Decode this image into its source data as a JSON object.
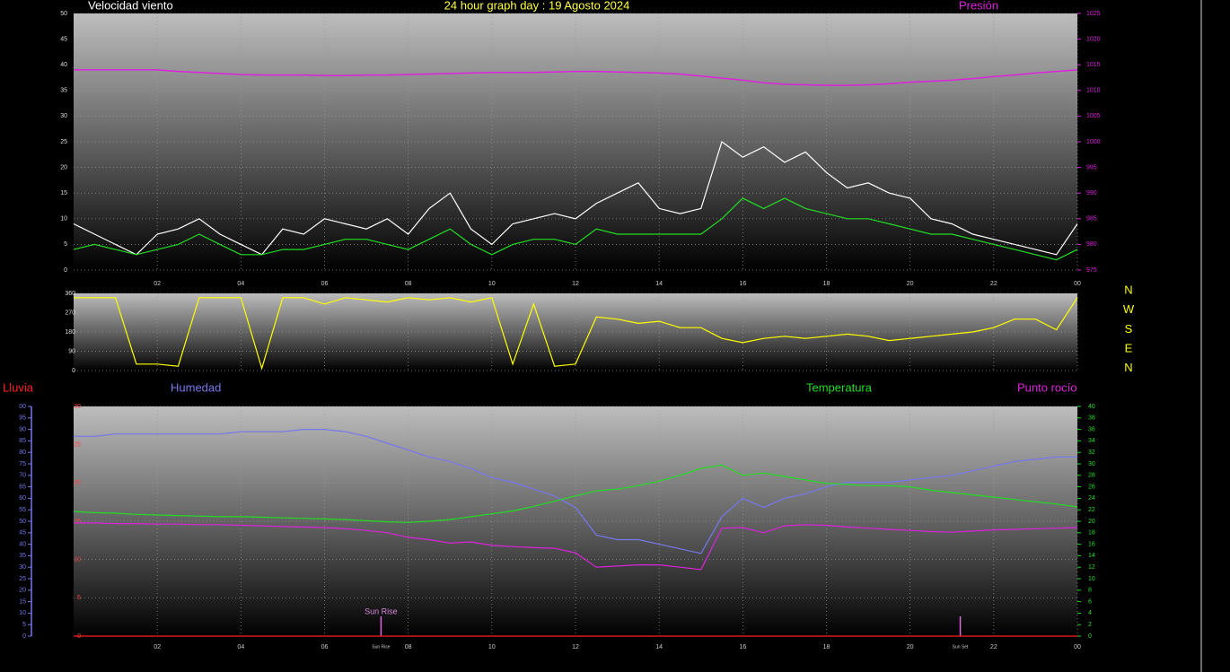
{
  "chart_data": [
    {
      "type": "line",
      "title": "24 hour graph day : 19 Agosto 2024",
      "ylabel": "Velocidad viento",
      "y2label": "Presión",
      "x": [
        0,
        0.5,
        1,
        1.5,
        2,
        2.5,
        3,
        3.5,
        4,
        4.5,
        5,
        5.5,
        6,
        6.5,
        7,
        7.5,
        8,
        8.5,
        9,
        9.5,
        10,
        10.5,
        11,
        11.5,
        12,
        12.5,
        13,
        13.5,
        14,
        14.5,
        15,
        15.5,
        16,
        16.5,
        17,
        17.5,
        18,
        18.5,
        19,
        19.5,
        20,
        20.5,
        21,
        21.5,
        22,
        22.5,
        23,
        23.5,
        24
      ],
      "xlim": [
        0,
        24
      ],
      "xticks": [
        {
          "value": 2,
          "label": "02"
        },
        {
          "value": 4,
          "label": "04"
        },
        {
          "value": 6,
          "label": "06"
        },
        {
          "value": 8,
          "label": "08"
        },
        10,
        12,
        14,
        16,
        18,
        20,
        22,
        {
          "value": 24,
          "label": "00"
        }
      ],
      "ylim": [
        0,
        50
      ],
      "yticks": [
        0,
        5,
        10,
        15,
        20,
        25,
        30,
        35,
        40,
        45,
        50
      ],
      "y2lim": [
        975,
        1025
      ],
      "y2ticks": [
        975,
        980,
        985,
        990,
        995,
        1000,
        1005,
        1010,
        1015,
        1020,
        1025
      ],
      "grid": true,
      "xtick_labels": true,
      "series": [
        {
          "color": "#ffffff",
          "values": [
            9,
            7,
            5,
            3,
            7,
            8,
            10,
            7,
            5,
            3,
            8,
            7,
            10,
            9,
            8,
            10,
            7,
            12,
            15,
            8,
            5,
            9,
            10,
            11,
            10,
            13,
            15,
            17,
            12,
            11,
            12,
            25,
            22,
            24,
            21,
            23,
            19,
            16,
            17,
            15,
            14,
            10,
            9,
            7,
            6,
            5,
            4,
            3,
            9
          ]
        },
        {
          "color": "#22dd22",
          "values": [
            4,
            5,
            4,
            3,
            4,
            5,
            7,
            5,
            3,
            3,
            4,
            4,
            5,
            6,
            6,
            5,
            4,
            6,
            8,
            5,
            3,
            5,
            6,
            6,
            5,
            8,
            7,
            7,
            7,
            7,
            7,
            10,
            14,
            12,
            14,
            12,
            11,
            10,
            10,
            9,
            8,
            7,
            7,
            6,
            5,
            4,
            3,
            2,
            4
          ]
        },
        {
          "color": "#dd22dd",
          "axis": "y2",
          "values": [
            1014,
            1014,
            1014,
            1014,
            1014,
            1013.7,
            1013.5,
            1013.3,
            1013.1,
            1013,
            1013,
            1013,
            1012.9,
            1012.9,
            1013,
            1013,
            1013.1,
            1013.2,
            1013.3,
            1013.4,
            1013.5,
            1013.5,
            1013.5,
            1013.6,
            1013.7,
            1013.7,
            1013.6,
            1013.5,
            1013.4,
            1013.2,
            1012.8,
            1012.4,
            1012,
            1011.5,
            1011.2,
            1011.1,
            1011,
            1011,
            1011.1,
            1011.3,
            1011.6,
            1011.8,
            1012,
            1012.3,
            1012.7,
            1013,
            1013.4,
            1013.7,
            1014
          ]
        }
      ]
    },
    {
      "type": "line",
      "x": [
        0,
        0.5,
        1,
        1.5,
        2,
        2.5,
        3,
        3.5,
        4,
        4.5,
        5,
        5.5,
        6,
        6.5,
        7,
        7.5,
        8,
        8.5,
        9,
        9.5,
        10,
        10.5,
        11,
        11.5,
        12,
        12.5,
        13,
        13.5,
        14,
        14.5,
        15,
        15.5,
        16,
        16.5,
        17,
        17.5,
        18,
        18.5,
        19,
        19.5,
        20,
        20.5,
        21,
        21.5,
        22,
        22.5,
        23,
        23.5,
        24
      ],
      "xlim": [
        0,
        24
      ],
      "xticks": [
        2,
        4,
        6,
        8,
        10,
        12,
        14,
        16,
        18,
        20,
        22,
        24
      ],
      "ylim": [
        0,
        360
      ],
      "yticks": [
        0,
        90,
        180,
        270,
        360
      ],
      "grid": true,
      "xtick_labels": false,
      "compass_labels": [
        "N",
        "W",
        "S",
        "E",
        "N"
      ],
      "series": [
        {
          "color": "#ffff00",
          "values": [
            340,
            340,
            340,
            30,
            30,
            20,
            340,
            340,
            340,
            10,
            340,
            340,
            310,
            340,
            330,
            320,
            340,
            330,
            340,
            320,
            340,
            30,
            310,
            20,
            30,
            250,
            240,
            220,
            230,
            200,
            200,
            150,
            130,
            150,
            160,
            150,
            160,
            170,
            160,
            140,
            150,
            160,
            170,
            180,
            200,
            240,
            240,
            190,
            340
          ]
        }
      ]
    },
    {
      "type": "line",
      "x": [
        0,
        0.5,
        1,
        1.5,
        2,
        2.5,
        3,
        3.5,
        4,
        4.5,
        5,
        5.5,
        6,
        6.5,
        7,
        7.5,
        8,
        8.5,
        9,
        9.5,
        10,
        10.5,
        11,
        11.5,
        12,
        12.5,
        13,
        13.5,
        14,
        14.5,
        15,
        15.5,
        16,
        16.5,
        17,
        17.5,
        18,
        18.5,
        19,
        19.5,
        20,
        20.5,
        21,
        21.5,
        22,
        22.5,
        23,
        23.5,
        24
      ],
      "xlim": [
        0,
        24
      ],
      "xticks": [
        {
          "value": 2,
          "label": "02"
        },
        {
          "value": 4,
          "label": "04"
        },
        {
          "value": 6,
          "label": "06"
        },
        {
          "value": 8,
          "label": "08"
        },
        10,
        12,
        14,
        16,
        18,
        20,
        22,
        {
          "value": 24,
          "label": "00"
        }
      ],
      "ylim": [
        0,
        30
      ],
      "yticks": [
        0,
        5,
        10,
        15,
        20,
        25,
        30
      ],
      "y2lim": [
        0,
        40
      ],
      "y2ticks": [
        0,
        2,
        4,
        6,
        8,
        10,
        12,
        14,
        16,
        18,
        20,
        22,
        24,
        26,
        28,
        30,
        32,
        34,
        36,
        38,
        40
      ],
      "y3lim": [
        0,
        100
      ],
      "y3ticks": [
        0,
        5,
        10,
        15,
        20,
        25,
        30,
        35,
        40,
        45,
        50,
        55,
        60,
        65,
        70,
        75,
        80,
        85,
        90,
        95,
        {
          "value": 100,
          "label": "00"
        }
      ],
      "grid": true,
      "xtick_labels": true,
      "annotations": [
        {
          "text": "Sun Rise",
          "x": 7.35
        },
        {
          "text": "Sun Set",
          "x": 21.2
        }
      ],
      "series": [
        {
          "name": "Lluvia",
          "color": "#ff2020",
          "values": [
            0,
            0,
            0,
            0,
            0,
            0,
            0,
            0,
            0,
            0,
            0,
            0,
            0,
            0,
            0,
            0,
            0,
            0,
            0,
            0,
            0,
            0,
            0,
            0,
            0,
            0,
            0,
            0,
            0,
            0,
            0,
            0,
            0,
            0,
            0,
            0,
            0,
            0,
            0,
            0,
            0,
            0,
            0,
            0,
            0,
            0,
            0,
            0,
            0
          ]
        },
        {
          "name": "Humedad",
          "color": "#7777ee",
          "axis": "y3",
          "values": [
            87,
            87,
            88,
            88,
            88,
            88,
            88,
            88,
            89,
            89,
            89,
            90,
            90,
            89,
            87,
            84,
            81,
            78,
            76,
            73,
            69,
            67,
            64,
            61,
            56,
            44,
            42,
            42,
            40,
            38,
            36,
            52,
            60,
            56,
            60,
            62,
            65,
            67,
            67,
            67,
            68,
            69,
            70,
            72,
            74,
            76,
            77,
            78,
            78
          ]
        },
        {
          "name": "Temperatura",
          "color": "#22dd22",
          "axis": "y2",
          "values": [
            21.7,
            21.5,
            21.4,
            21.2,
            21.1,
            21,
            20.9,
            20.8,
            20.8,
            20.7,
            20.6,
            20.5,
            20.4,
            20.3,
            20.1,
            19.9,
            19.8,
            20,
            20.3,
            20.8,
            21.3,
            21.8,
            22.6,
            23.5,
            24.4,
            25.3,
            25.6,
            26.2,
            27,
            28,
            29.2,
            29.8,
            28,
            28.4,
            27.8,
            27.2,
            26.6,
            26.4,
            26.2,
            26.2,
            26,
            25.4,
            25,
            24.6,
            24.2,
            23.8,
            23.4,
            23,
            22.5
          ]
        },
        {
          "name": "Punto rocío",
          "color": "#dd22dd",
          "axis": "y2",
          "values": [
            19.7,
            19.7,
            19.6,
            19.6,
            19.5,
            19.5,
            19.4,
            19.4,
            19.3,
            19.2,
            19.1,
            19,
            18.9,
            18.7,
            18.4,
            18,
            17.2,
            16.8,
            16.2,
            16.4,
            15.8,
            15.6,
            15.4,
            15.3,
            14.5,
            12,
            12.2,
            12.4,
            12.4,
            12,
            11.6,
            18.8,
            18.9,
            18,
            19.2,
            19.4,
            19.3,
            19,
            18.8,
            18.6,
            18.4,
            18.2,
            18.1,
            18.3,
            18.5,
            18.6,
            18.7,
            18.8,
            18.9
          ]
        }
      ]
    }
  ]
}
